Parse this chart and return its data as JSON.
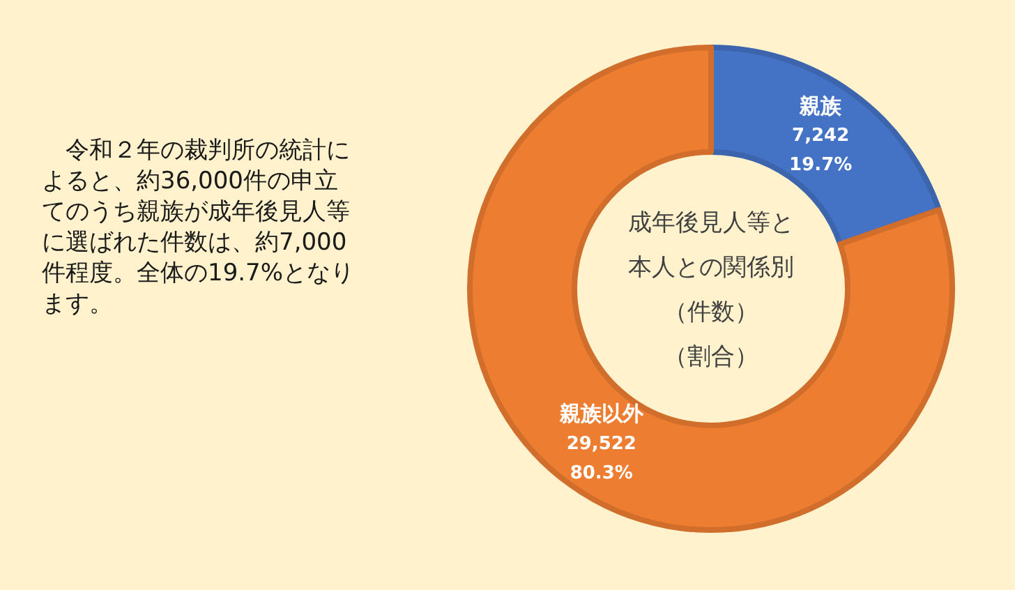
{
  "chart_data": {
    "type": "donut",
    "title": "成年後見人等と本人との関係別（件数）（割合）",
    "categories": [
      "親族",
      "親族以外"
    ],
    "values": [
      7242,
      29522
    ],
    "colors": [
      "#4472c4",
      "#ed7d31"
    ],
    "value_labels": [
      "7,242\n19.7%",
      "29,522\n80.3%"
    ],
    "annotations": [
      "　令和２年の裁判所の統計によると、約36,000件の申立てのうち親族が成年後見人等に選ばれた件数は、約7,000件程度。全体の19.7%となります。"
    ]
  }
}
